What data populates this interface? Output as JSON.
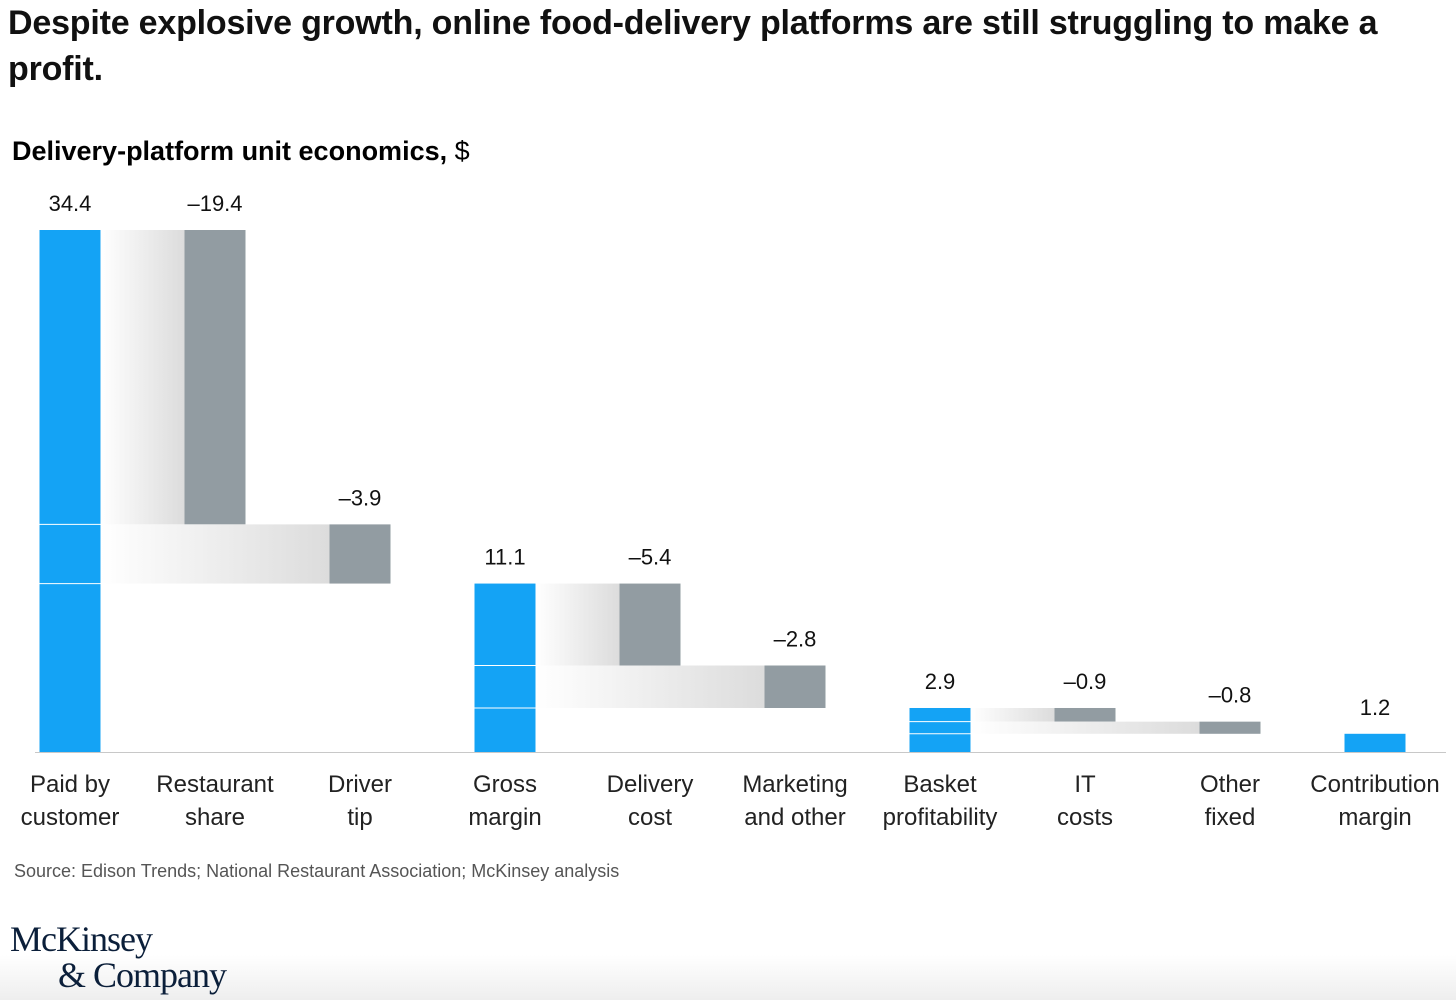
{
  "chart_data": {
    "type": "waterfall",
    "title": "Despite explosive growth, online food-delivery platforms are still struggling to make a profit.",
    "subtitle": "Delivery-platform unit economics,",
    "unit": "$",
    "categories": [
      [
        "Paid by",
        "customer"
      ],
      [
        "Restaurant",
        "share"
      ],
      [
        "Driver",
        "tip"
      ],
      [
        "Gross",
        "margin"
      ],
      [
        "Delivery",
        "cost"
      ],
      [
        "Marketing",
        "and other"
      ],
      [
        "Basket",
        "profitability"
      ],
      [
        "IT",
        "costs"
      ],
      [
        "Other",
        "fixed"
      ],
      [
        "Contribution",
        "margin"
      ]
    ],
    "values": [
      34.4,
      -19.4,
      -3.9,
      11.1,
      -5.4,
      -2.8,
      2.9,
      -0.9,
      -0.8,
      1.2
    ],
    "value_labels": [
      "34.4",
      "–19.4",
      "–3.9",
      "11.1",
      "–5.4",
      "–2.8",
      "2.9",
      "–0.9",
      "–0.8",
      "1.2"
    ],
    "measure": [
      "total",
      "relative",
      "relative",
      "total",
      "relative",
      "relative",
      "total",
      "relative",
      "relative",
      "total"
    ],
    "total_color": "#14a3f5",
    "relative_color": "#929ca2",
    "source": "Source: Edison Trends; National Restaurant Association; McKinsey analysis",
    "logo": [
      "McKinsey",
      "& Company"
    ]
  }
}
